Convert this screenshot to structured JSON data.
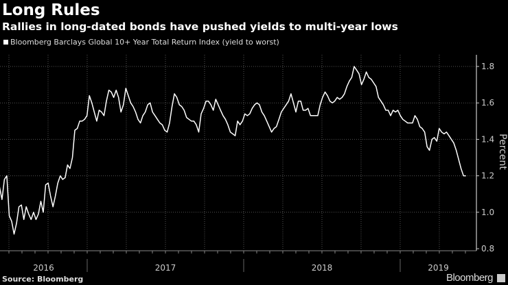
{
  "header": {
    "title": "Long Rules",
    "subtitle": "Rallies in long-dated bonds have pushed yields to multi-year lows"
  },
  "footer": {
    "source": "Source: Bloomberg",
    "brand": "Bloomberg"
  },
  "colors": {
    "background": "#000000",
    "line": "#ffffff",
    "grid": "#555555"
  },
  "chart_data": {
    "type": "line",
    "title": "Long Rules",
    "subtitle": "Rallies in long-dated bonds have pushed yields to multi-year lows",
    "legend": [
      "Bloomberg Barclays Global 10+ Year Total Return Index (yield to worst)"
    ],
    "legend_position": "top-left",
    "xlabel": "",
    "ylabel": "Percent",
    "x_start": 2016.44,
    "x_end": 2019.42,
    "xlim": [
      2016.443,
      2019.487
    ],
    "ylim": [
      0.8,
      1.864
    ],
    "yticks": [
      0.8,
      1.0,
      1.2,
      1.4,
      1.6,
      1.8
    ],
    "ytick_labels": [
      "0.8",
      "1.0",
      "1.2",
      "1.4",
      "1.6",
      "1.8"
    ],
    "year_labels": [
      {
        "label": "2016",
        "start": 2016.443,
        "end": 2017
      },
      {
        "label": "2017",
        "start": 2017,
        "end": 2018
      },
      {
        "label": "2018",
        "start": 2018,
        "end": 2019
      },
      {
        "label": "2019",
        "start": 2019,
        "end": 2019.487
      }
    ],
    "grid": true,
    "series": [
      {
        "name": "Bloomberg Barclays Global 10+ Year Total Return Index (yield to worst)",
        "values": [
          1.14,
          1.07,
          1.18,
          1.2,
          0.98,
          0.95,
          0.88,
          0.94,
          1.03,
          1.04,
          0.96,
          1.03,
          0.99,
          0.96,
          1.0,
          0.96,
          0.99,
          1.06,
          1.0,
          1.15,
          1.16,
          1.09,
          1.03,
          1.09,
          1.16,
          1.2,
          1.18,
          1.19,
          1.26,
          1.24,
          1.3,
          1.45,
          1.46,
          1.5,
          1.5,
          1.51,
          1.53,
          1.64,
          1.6,
          1.55,
          1.5,
          1.56,
          1.55,
          1.53,
          1.61,
          1.67,
          1.66,
          1.63,
          1.67,
          1.63,
          1.55,
          1.59,
          1.68,
          1.64,
          1.6,
          1.58,
          1.55,
          1.51,
          1.49,
          1.53,
          1.55,
          1.59,
          1.6,
          1.55,
          1.53,
          1.51,
          1.49,
          1.48,
          1.45,
          1.44,
          1.49,
          1.58,
          1.65,
          1.63,
          1.59,
          1.58,
          1.56,
          1.52,
          1.51,
          1.5,
          1.5,
          1.48,
          1.44,
          1.54,
          1.57,
          1.61,
          1.61,
          1.59,
          1.56,
          1.62,
          1.59,
          1.56,
          1.53,
          1.51,
          1.48,
          1.44,
          1.43,
          1.42,
          1.5,
          1.48,
          1.5,
          1.54,
          1.53,
          1.54,
          1.57,
          1.59,
          1.6,
          1.59,
          1.55,
          1.53,
          1.5,
          1.47,
          1.44,
          1.46,
          1.47,
          1.51,
          1.55,
          1.57,
          1.59,
          1.61,
          1.65,
          1.6,
          1.55,
          1.61,
          1.61,
          1.56,
          1.56,
          1.57,
          1.53,
          1.53,
          1.53,
          1.53,
          1.59,
          1.63,
          1.66,
          1.64,
          1.61,
          1.6,
          1.61,
          1.63,
          1.62,
          1.63,
          1.65,
          1.69,
          1.72,
          1.74,
          1.8,
          1.78,
          1.76,
          1.7,
          1.73,
          1.77,
          1.74,
          1.73,
          1.71,
          1.69,
          1.63,
          1.61,
          1.59,
          1.56,
          1.56,
          1.53,
          1.56,
          1.55,
          1.56,
          1.53,
          1.51,
          1.5,
          1.49,
          1.49,
          1.49,
          1.53,
          1.51,
          1.47,
          1.46,
          1.44,
          1.36,
          1.34,
          1.4,
          1.41,
          1.39,
          1.46,
          1.44,
          1.43,
          1.44,
          1.42,
          1.4,
          1.38,
          1.34,
          1.29,
          1.24,
          1.2,
          1.2
        ]
      }
    ]
  }
}
